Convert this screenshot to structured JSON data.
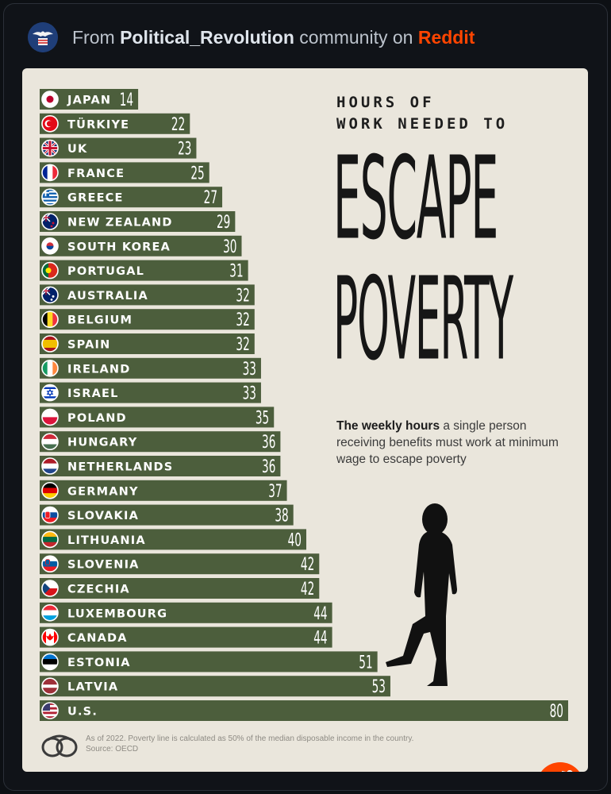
{
  "source": {
    "prefix": "From",
    "community": "Political_Revolution",
    "middle": "community on",
    "platform": "Reddit"
  },
  "chart_data": {
    "type": "bar",
    "orientation": "horizontal",
    "title_line1": "HOURS OF",
    "title_line2": "WORK NEEDED TO",
    "title_big1": "ESCAPE",
    "title_big2": "POVERTY",
    "subtitle_bold": "The weekly hours",
    "subtitle_rest": " a single person receiving benefits must work at minimum wage to escape poverty",
    "categories": [
      "JAPAN",
      "TÜRKIYE",
      "UK",
      "FRANCE",
      "GREECE",
      "NEW ZEALAND",
      "SOUTH KOREA",
      "PORTUGAL",
      "AUSTRALIA",
      "BELGIUM",
      "SPAIN",
      "IRELAND",
      "ISRAEL",
      "POLAND",
      "HUNGARY",
      "NETHERLANDS",
      "GERMANY",
      "SLOVAKIA",
      "LITHUANIA",
      "SLOVENIA",
      "CZECHIA",
      "LUXEMBOURG",
      "CANADA",
      "ESTONIA",
      "LATVIA",
      "U.S."
    ],
    "values": [
      14,
      22,
      23,
      25,
      27,
      29,
      30,
      31,
      32,
      32,
      32,
      33,
      33,
      35,
      36,
      36,
      37,
      38,
      40,
      42,
      42,
      44,
      44,
      51,
      53,
      80
    ],
    "value_labels": [
      "14",
      "22",
      "23",
      "25",
      "27",
      "29",
      "30",
      "31",
      "32",
      "32",
      "32",
      "33",
      "33",
      "35",
      "36",
      "36",
      "37",
      "38",
      "40",
      "42",
      "42",
      "44",
      "44",
      "51",
      "53",
      "80"
    ],
    "flags": [
      "jp",
      "tr",
      "uk",
      "fr",
      "gr",
      "nz",
      "kr",
      "pt",
      "au",
      "be",
      "es",
      "ie",
      "il",
      "pl",
      "hu",
      "nl",
      "de",
      "sk",
      "lt",
      "si",
      "cz",
      "lu",
      "ca",
      "ee",
      "lv",
      "us"
    ],
    "bar_color": "#4c5e3c",
    "footnote": "As of 2022. Poverty line is calculated as 50% of the median disposable income in the country.",
    "source_note": "Source: OECD"
  }
}
